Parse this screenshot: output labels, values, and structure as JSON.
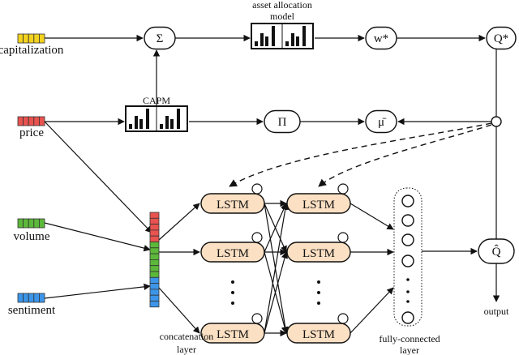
{
  "inputs": [
    {
      "label": "capitalization",
      "color": "#f3d31f"
    },
    {
      "label": "price",
      "color": "#e8534f"
    },
    {
      "label": "volume",
      "color": "#5cb83a"
    },
    {
      "label": "sentiment",
      "color": "#3c95e8"
    }
  ],
  "nodes": {
    "sum": "Σ",
    "asset_allocation_label_line1": "asset allocation",
    "asset_allocation_label_line2": "model",
    "w_star": "w*",
    "q_star": "Q*",
    "capm_label": "CAPM",
    "pi": "Π",
    "mu_bar": "μ̄",
    "q_hat": "Q̂",
    "output": "output"
  },
  "lstm_label": "LSTM",
  "concat_label_line1": "concatenation",
  "concat_label_line2": "layer",
  "fc_label_line1": "fully-connected",
  "fc_label_line2": "layer",
  "colors": {
    "lstm_fill": "#fbe0c3"
  }
}
